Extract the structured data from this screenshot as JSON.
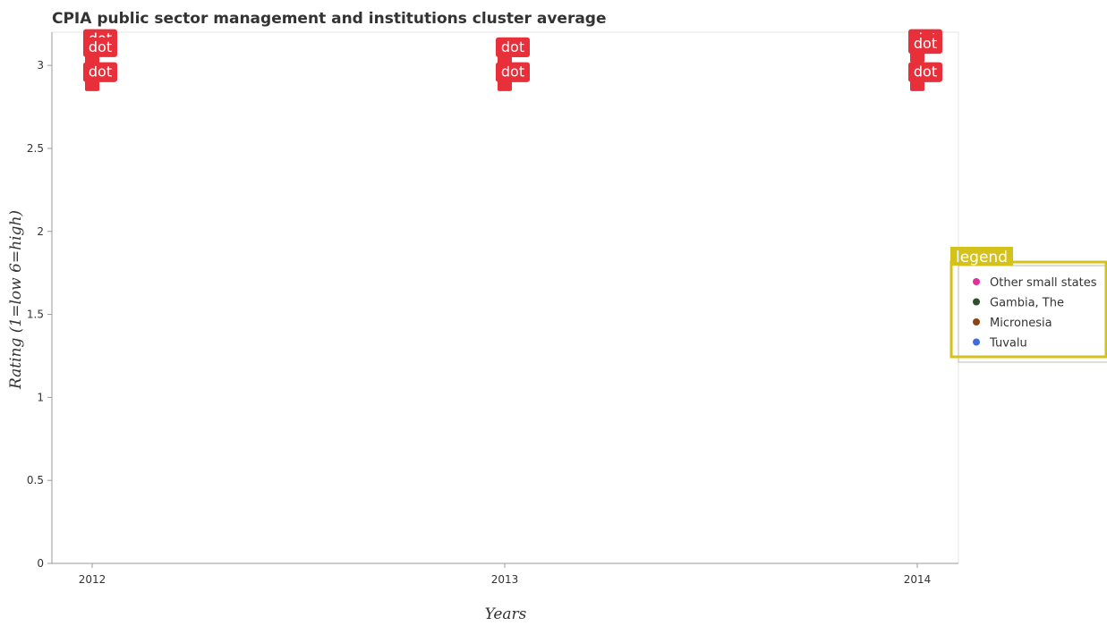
{
  "chart_data": {
    "type": "scatter",
    "title": "CPIA public sector management and institutions cluster average",
    "xlabel": "Years",
    "ylabel": "Rating (1=low 6=high)",
    "categories": [
      "2012",
      "2013",
      "2014"
    ],
    "ylim": [
      0,
      3.2
    ],
    "yticks": [
      "0",
      "0.5",
      "1",
      "1.5",
      "2",
      "2.5",
      "3"
    ],
    "grid": false,
    "legend_position": "right",
    "legend_tag": "legend",
    "mark_tag": "dot",
    "series": [
      {
        "name": "Other small states",
        "color": "#e0309a",
        "values": [
          3.1,
          3.05,
          3.1
        ]
      },
      {
        "name": "Gambia, The",
        "color": "#2f4f2f",
        "values": [
          2.9,
          2.9,
          2.9
        ]
      },
      {
        "name": "Micronesia",
        "color": "#8b4513",
        "values": [
          2.9,
          2.9,
          2.9
        ]
      },
      {
        "name": "Tuvalu",
        "color": "#4169e1",
        "values": [
          3.05,
          3.05,
          3.07
        ]
      }
    ]
  }
}
